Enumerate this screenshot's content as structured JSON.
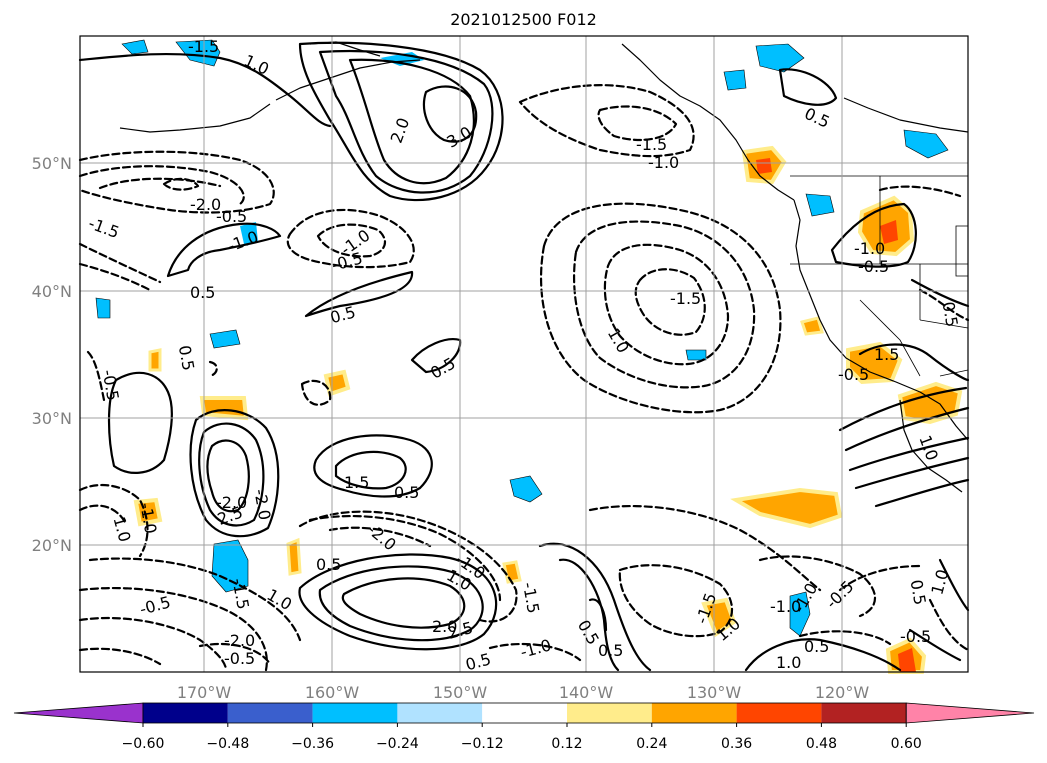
{
  "title": "2021012500 F012",
  "map": {
    "lon_labels": [
      "170°W",
      "160°W",
      "150°W",
      "140°W",
      "130°W",
      "120°W"
    ],
    "lat_labels": [
      "50°N",
      "40°N",
      "30°N",
      "20°N"
    ]
  },
  "contour_labels": [
    "-1.5",
    "1.0",
    "2.0",
    "3.0",
    "-1.5",
    "-1.0",
    "0.5",
    "-2.0",
    "-0.5",
    "-1.5",
    "-1.0",
    "-1.0",
    "-0.5",
    "0.5",
    "-1.5",
    "1.0",
    "0.5",
    "0.5",
    "-0.5",
    "-1.0",
    "-0.5",
    "0.5",
    "0.5",
    "-0.5",
    "1.5",
    "1.0",
    "1.5",
    "0.5",
    "2.5",
    "-2.0",
    "1.0",
    "-1.0",
    "-2.0",
    "-2.0",
    "0.5",
    "-1.0",
    "-1.5",
    "-0.5",
    "-1.5",
    "-2.0",
    "-0.5",
    "1.0",
    "1.0",
    "0.5",
    "2.0",
    "2.5",
    "-1.0",
    "0.5",
    "0.5",
    "1.0",
    "-1.5",
    "-1.0",
    "-1.0",
    "-0.5",
    "0.5",
    "1.0",
    "-0.5",
    "0.5",
    "1.0"
  ],
  "colorbar": {
    "ticks": [
      "−0.60",
      "−0.48",
      "−0.36",
      "−0.24",
      "−0.12",
      "0.12",
      "0.24",
      "0.36",
      "0.48",
      "0.60"
    ],
    "colors": [
      "#9a32cd",
      "#00008b",
      "#3a5fcd",
      "#00bfff",
      "#b0e2ff",
      "#ffffff",
      "#ffec8b",
      "#ffa500",
      "#ff4500",
      "#b22222",
      "#ff83a8"
    ]
  }
}
